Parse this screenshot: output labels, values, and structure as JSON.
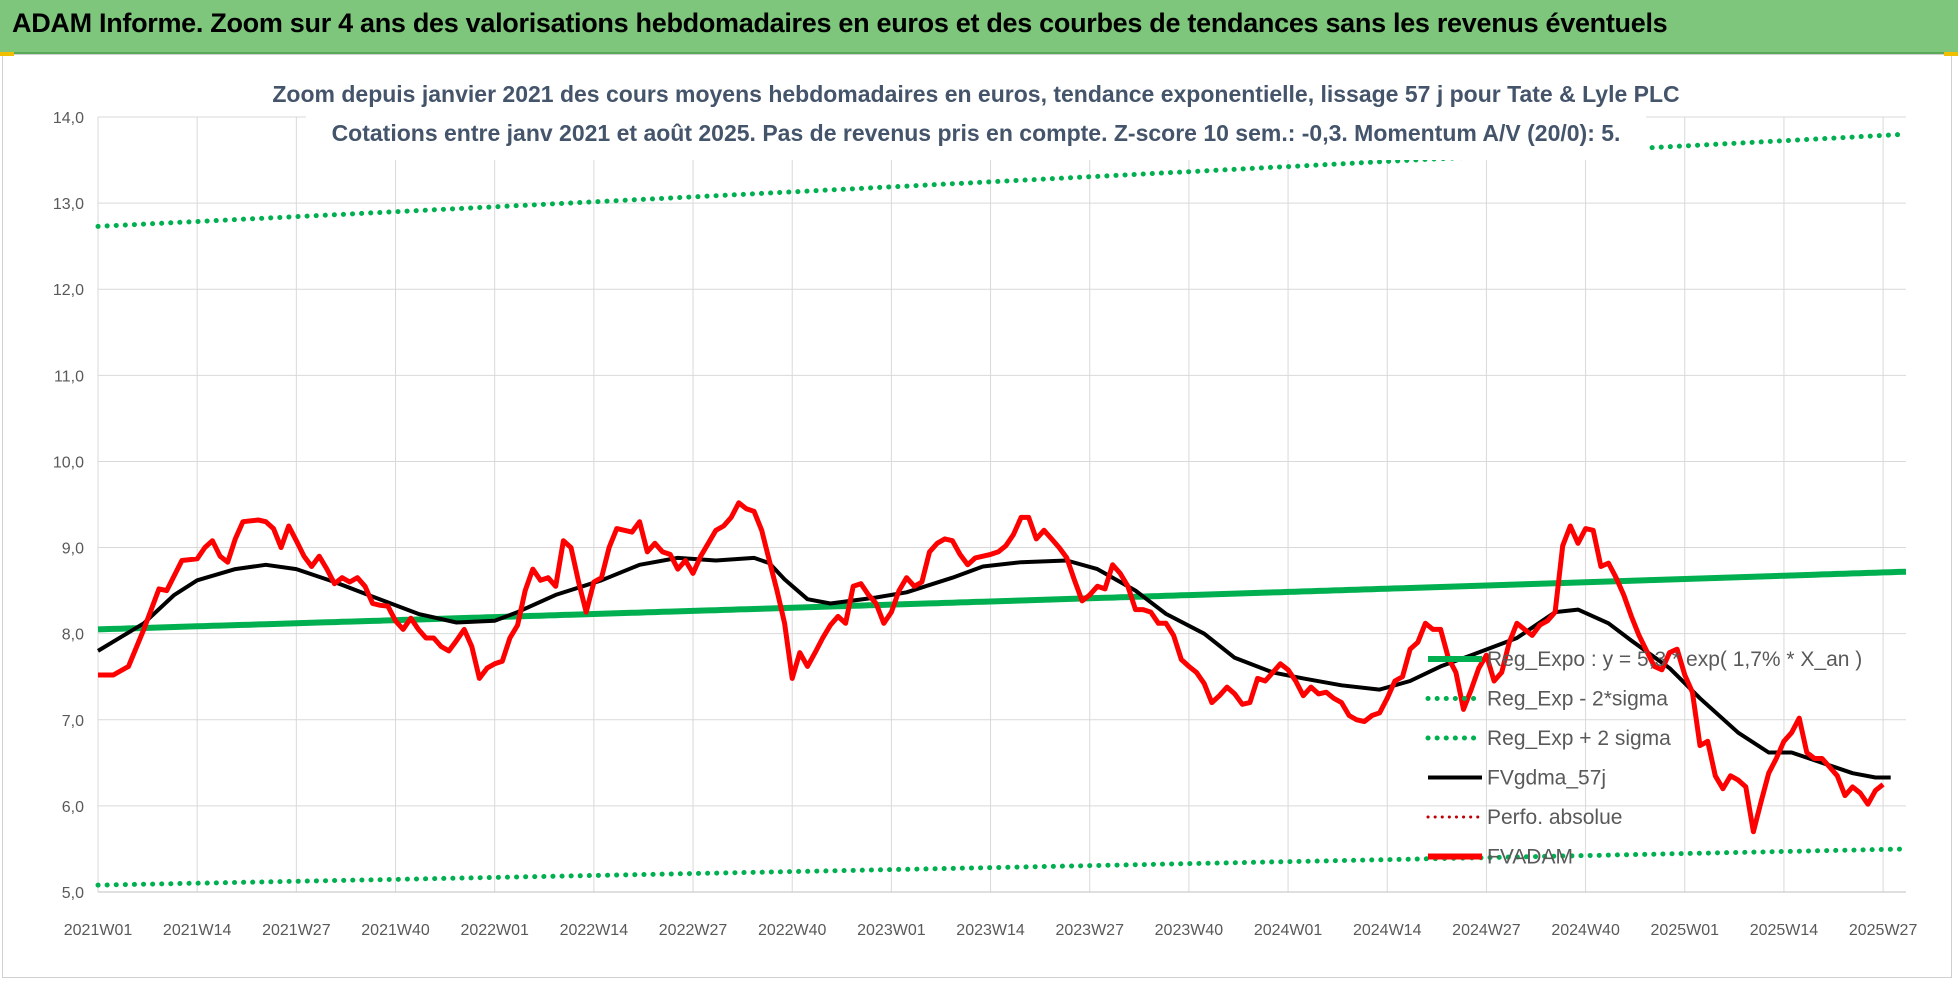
{
  "banner": {
    "title": "ADAM Informe. Zoom sur 4 ans des valorisations hebdomadaires en euros et des courbes de tendances sans les revenus éventuels"
  },
  "colors": {
    "banner": "#7dc67b",
    "reg_expo": "#00b050",
    "fvadam": "#ff0000",
    "fvgdma": "#000000",
    "perfo": "#c00000",
    "subtitle": "#44546a"
  },
  "chart_data": {
    "type": "line",
    "title_line1": "Zoom depuis janvier 2021 des cours moyens hebdomadaires en euros, tendance exponentielle, lissage 57 j pour Tate & Lyle PLC",
    "title_line2": "Cotations entre janv 2021 et août 2025.  Pas de revenus pris en compte. Z-score 10 sem.: -0,3. Momentum A/V (20/0): 5.",
    "xlabel": "",
    "ylabel": "",
    "ylim": [
      5.0,
      14.0
    ],
    "y_ticks": [
      "5,0",
      "6,0",
      "7,0",
      "8,0",
      "9,0",
      "10,0",
      "11,0",
      "12,0",
      "13,0",
      "14,0"
    ],
    "x_ticks": [
      "2021W01",
      "2021W14",
      "2021W27",
      "2021W40",
      "2022W01",
      "2022W14",
      "2022W27",
      "2022W40",
      "2023W01",
      "2023W14",
      "2023W27",
      "2023W40",
      "2024W01",
      "2024W14",
      "2024W27",
      "2024W40",
      "2025W01",
      "2025W14",
      "2025W27"
    ],
    "grid": "vertical and horizontal",
    "legend_position": "right",
    "week_count": 238,
    "fvadam_anchors": [
      [
        0,
        7.52
      ],
      [
        2,
        7.52
      ],
      [
        4,
        7.62
      ],
      [
        6,
        8.05
      ],
      [
        8,
        8.52
      ],
      [
        9,
        8.5
      ],
      [
        11,
        8.85
      ],
      [
        13,
        8.87
      ],
      [
        14,
        9.0
      ],
      [
        15,
        9.08
      ],
      [
        16,
        8.9
      ],
      [
        17,
        8.83
      ],
      [
        18,
        9.1
      ],
      [
        19,
        9.3
      ],
      [
        21,
        9.32
      ],
      [
        22,
        9.3
      ],
      [
        23,
        9.22
      ],
      [
        24,
        9.0
      ],
      [
        25,
        9.25
      ],
      [
        26,
        9.08
      ],
      [
        27,
        8.9
      ],
      [
        28,
        8.78
      ],
      [
        29,
        8.9
      ],
      [
        30,
        8.75
      ],
      [
        31,
        8.58
      ],
      [
        32,
        8.65
      ],
      [
        33,
        8.6
      ],
      [
        34,
        8.65
      ],
      [
        35,
        8.55
      ],
      [
        36,
        8.35
      ],
      [
        37,
        8.33
      ],
      [
        38,
        8.32
      ],
      [
        39,
        8.15
      ],
      [
        40,
        8.05
      ],
      [
        41,
        8.18
      ],
      [
        42,
        8.05
      ],
      [
        43,
        7.95
      ],
      [
        44,
        7.95
      ],
      [
        45,
        7.85
      ],
      [
        46,
        7.8
      ],
      [
        47,
        7.92
      ],
      [
        48,
        8.05
      ],
      [
        49,
        7.85
      ],
      [
        50,
        7.48
      ],
      [
        51,
        7.6
      ],
      [
        52,
        7.65
      ],
      [
        53,
        7.68
      ],
      [
        54,
        7.95
      ],
      [
        55,
        8.1
      ],
      [
        56,
        8.5
      ],
      [
        57,
        8.75
      ],
      [
        58,
        8.62
      ],
      [
        59,
        8.65
      ],
      [
        60,
        8.55
      ],
      [
        61,
        9.08
      ],
      [
        62,
        9.0
      ],
      [
        63,
        8.6
      ],
      [
        64,
        8.25
      ],
      [
        65,
        8.6
      ],
      [
        66,
        8.65
      ],
      [
        67,
        9.0
      ],
      [
        68,
        9.22
      ],
      [
        69,
        9.2
      ],
      [
        70,
        9.18
      ],
      [
        71,
        9.3
      ],
      [
        72,
        8.95
      ],
      [
        73,
        9.05
      ],
      [
        74,
        8.95
      ],
      [
        75,
        8.92
      ],
      [
        76,
        8.75
      ],
      [
        77,
        8.85
      ],
      [
        78,
        8.7
      ],
      [
        79,
        8.9
      ],
      [
        80,
        9.05
      ],
      [
        81,
        9.2
      ],
      [
        82,
        9.25
      ],
      [
        83,
        9.35
      ],
      [
        84,
        9.52
      ],
      [
        85,
        9.45
      ],
      [
        86,
        9.42
      ],
      [
        87,
        9.2
      ],
      [
        88,
        8.85
      ],
      [
        89,
        8.5
      ],
      [
        90,
        8.12
      ],
      [
        91,
        7.48
      ],
      [
        92,
        7.78
      ],
      [
        93,
        7.62
      ],
      [
        94,
        7.78
      ],
      [
        95,
        7.95
      ],
      [
        96,
        8.1
      ],
      [
        97,
        8.2
      ],
      [
        98,
        8.12
      ],
      [
        99,
        8.55
      ],
      [
        100,
        8.58
      ],
      [
        101,
        8.45
      ],
      [
        102,
        8.35
      ],
      [
        103,
        8.12
      ],
      [
        104,
        8.25
      ],
      [
        105,
        8.5
      ],
      [
        106,
        8.65
      ],
      [
        107,
        8.55
      ],
      [
        108,
        8.6
      ],
      [
        109,
        8.95
      ],
      [
        110,
        9.05
      ],
      [
        111,
        9.1
      ],
      [
        112,
        9.08
      ],
      [
        113,
        8.92
      ],
      [
        114,
        8.8
      ],
      [
        115,
        8.88
      ],
      [
        116,
        8.9
      ],
      [
        117,
        8.92
      ],
      [
        118,
        8.95
      ],
      [
        119,
        9.02
      ],
      [
        120,
        9.15
      ],
      [
        121,
        9.35
      ],
      [
        122,
        9.35
      ],
      [
        123,
        9.1
      ],
      [
        124,
        9.2
      ],
      [
        125,
        9.1
      ],
      [
        126,
        9.0
      ],
      [
        127,
        8.88
      ],
      [
        128,
        8.62
      ],
      [
        129,
        8.38
      ],
      [
        130,
        8.45
      ],
      [
        131,
        8.55
      ],
      [
        132,
        8.52
      ],
      [
        133,
        8.8
      ],
      [
        134,
        8.7
      ],
      [
        135,
        8.55
      ],
      [
        136,
        8.28
      ],
      [
        137,
        8.28
      ],
      [
        138,
        8.25
      ],
      [
        139,
        8.12
      ],
      [
        140,
        8.12
      ],
      [
        141,
        7.98
      ],
      [
        142,
        7.7
      ],
      [
        143,
        7.62
      ],
      [
        144,
        7.55
      ],
      [
        145,
        7.42
      ],
      [
        146,
        7.2
      ],
      [
        147,
        7.28
      ],
      [
        148,
        7.38
      ],
      [
        149,
        7.3
      ],
      [
        150,
        7.18
      ],
      [
        151,
        7.2
      ],
      [
        152,
        7.48
      ],
      [
        153,
        7.45
      ],
      [
        154,
        7.55
      ],
      [
        155,
        7.65
      ],
      [
        156,
        7.58
      ],
      [
        157,
        7.45
      ],
      [
        158,
        7.28
      ],
      [
        159,
        7.38
      ],
      [
        160,
        7.3
      ],
      [
        161,
        7.32
      ],
      [
        162,
        7.25
      ],
      [
        163,
        7.2
      ],
      [
        164,
        7.05
      ],
      [
        165,
        7.0
      ],
      [
        166,
        6.98
      ],
      [
        167,
        7.05
      ],
      [
        168,
        7.08
      ],
      [
        169,
        7.25
      ],
      [
        170,
        7.45
      ],
      [
        171,
        7.5
      ],
      [
        172,
        7.82
      ],
      [
        173,
        7.9
      ],
      [
        174,
        8.12
      ],
      [
        175,
        8.05
      ],
      [
        176,
        8.05
      ],
      [
        177,
        7.72
      ],
      [
        178,
        7.55
      ],
      [
        179,
        7.12
      ],
      [
        180,
        7.35
      ],
      [
        181,
        7.6
      ],
      [
        182,
        7.75
      ],
      [
        183,
        7.45
      ],
      [
        184,
        7.55
      ],
      [
        185,
        7.9
      ],
      [
        186,
        8.12
      ],
      [
        187,
        8.05
      ],
      [
        188,
        7.98
      ],
      [
        189,
        8.1
      ],
      [
        190,
        8.15
      ],
      [
        191,
        8.25
      ],
      [
        192,
        9.02
      ],
      [
        193,
        9.25
      ],
      [
        194,
        9.05
      ],
      [
        195,
        9.22
      ],
      [
        196,
        9.2
      ],
      [
        197,
        8.78
      ],
      [
        198,
        8.82
      ],
      [
        199,
        8.65
      ],
      [
        200,
        8.45
      ],
      [
        201,
        8.2
      ],
      [
        202,
        7.98
      ],
      [
        203,
        7.8
      ],
      [
        204,
        7.62
      ],
      [
        205,
        7.58
      ],
      [
        206,
        7.78
      ],
      [
        207,
        7.82
      ],
      [
        208,
        7.52
      ],
      [
        209,
        7.32
      ],
      [
        210,
        6.7
      ],
      [
        211,
        6.75
      ],
      [
        212,
        6.35
      ],
      [
        213,
        6.2
      ],
      [
        214,
        6.35
      ],
      [
        215,
        6.3
      ],
      [
        216,
        6.22
      ],
      [
        217,
        5.7
      ],
      [
        218,
        6.05
      ],
      [
        219,
        6.38
      ],
      [
        220,
        6.55
      ],
      [
        221,
        6.75
      ],
      [
        222,
        6.85
      ],
      [
        223,
        7.02
      ],
      [
        224,
        6.62
      ],
      [
        225,
        6.55
      ],
      [
        226,
        6.55
      ],
      [
        227,
        6.45
      ],
      [
        228,
        6.35
      ],
      [
        229,
        6.12
      ],
      [
        230,
        6.22
      ],
      [
        231,
        6.15
      ],
      [
        232,
        6.02
      ],
      [
        233,
        6.18
      ],
      [
        234,
        6.25
      ]
    ],
    "fvgdma_anchors": [
      [
        0,
        7.8
      ],
      [
        6,
        8.12
      ],
      [
        10,
        8.45
      ],
      [
        13,
        8.62
      ],
      [
        18,
        8.75
      ],
      [
        22,
        8.8
      ],
      [
        26,
        8.75
      ],
      [
        31,
        8.6
      ],
      [
        36,
        8.43
      ],
      [
        42,
        8.23
      ],
      [
        47,
        8.13
      ],
      [
        52,
        8.15
      ],
      [
        55,
        8.25
      ],
      [
        60,
        8.45
      ],
      [
        66,
        8.62
      ],
      [
        71,
        8.8
      ],
      [
        76,
        8.88
      ],
      [
        81,
        8.85
      ],
      [
        86,
        8.88
      ],
      [
        88,
        8.82
      ],
      [
        90,
        8.63
      ],
      [
        93,
        8.4
      ],
      [
        96,
        8.35
      ],
      [
        102,
        8.42
      ],
      [
        106,
        8.48
      ],
      [
        112,
        8.65
      ],
      [
        116,
        8.78
      ],
      [
        121,
        8.83
      ],
      [
        127,
        8.85
      ],
      [
        131,
        8.75
      ],
      [
        136,
        8.5
      ],
      [
        140,
        8.23
      ],
      [
        145,
        8.0
      ],
      [
        149,
        7.72
      ],
      [
        154,
        7.55
      ],
      [
        158,
        7.48
      ],
      [
        163,
        7.4
      ],
      [
        168,
        7.35
      ],
      [
        172,
        7.45
      ],
      [
        176,
        7.62
      ],
      [
        180,
        7.75
      ],
      [
        186,
        7.95
      ],
      [
        191,
        8.25
      ],
      [
        194,
        8.28
      ],
      [
        198,
        8.12
      ],
      [
        201,
        7.92
      ],
      [
        206,
        7.6
      ],
      [
        210,
        7.25
      ],
      [
        215,
        6.85
      ],
      [
        219,
        6.62
      ],
      [
        222,
        6.62
      ],
      [
        226,
        6.5
      ],
      [
        230,
        6.38
      ],
      [
        233,
        6.33
      ],
      [
        235,
        6.33
      ]
    ],
    "reg_expo": {
      "label": "Reg_Expo : y = 5,3 * exp( 1,7% *  X_an )",
      "start": 8.05,
      "end": 8.72
    },
    "reg_minus_2sigma": {
      "label": "Reg_Exp - 2*sigma",
      "start": 5.08,
      "end": 5.5
    },
    "reg_plus_2sigma": {
      "label": "Reg_Exp + 2 sigma",
      "start": 12.73,
      "end": 13.8
    },
    "fvgdma_label": "FVgdma_57j",
    "perfo_label": "Perfo. absolue",
    "fvadam_label": "FVADAM"
  }
}
